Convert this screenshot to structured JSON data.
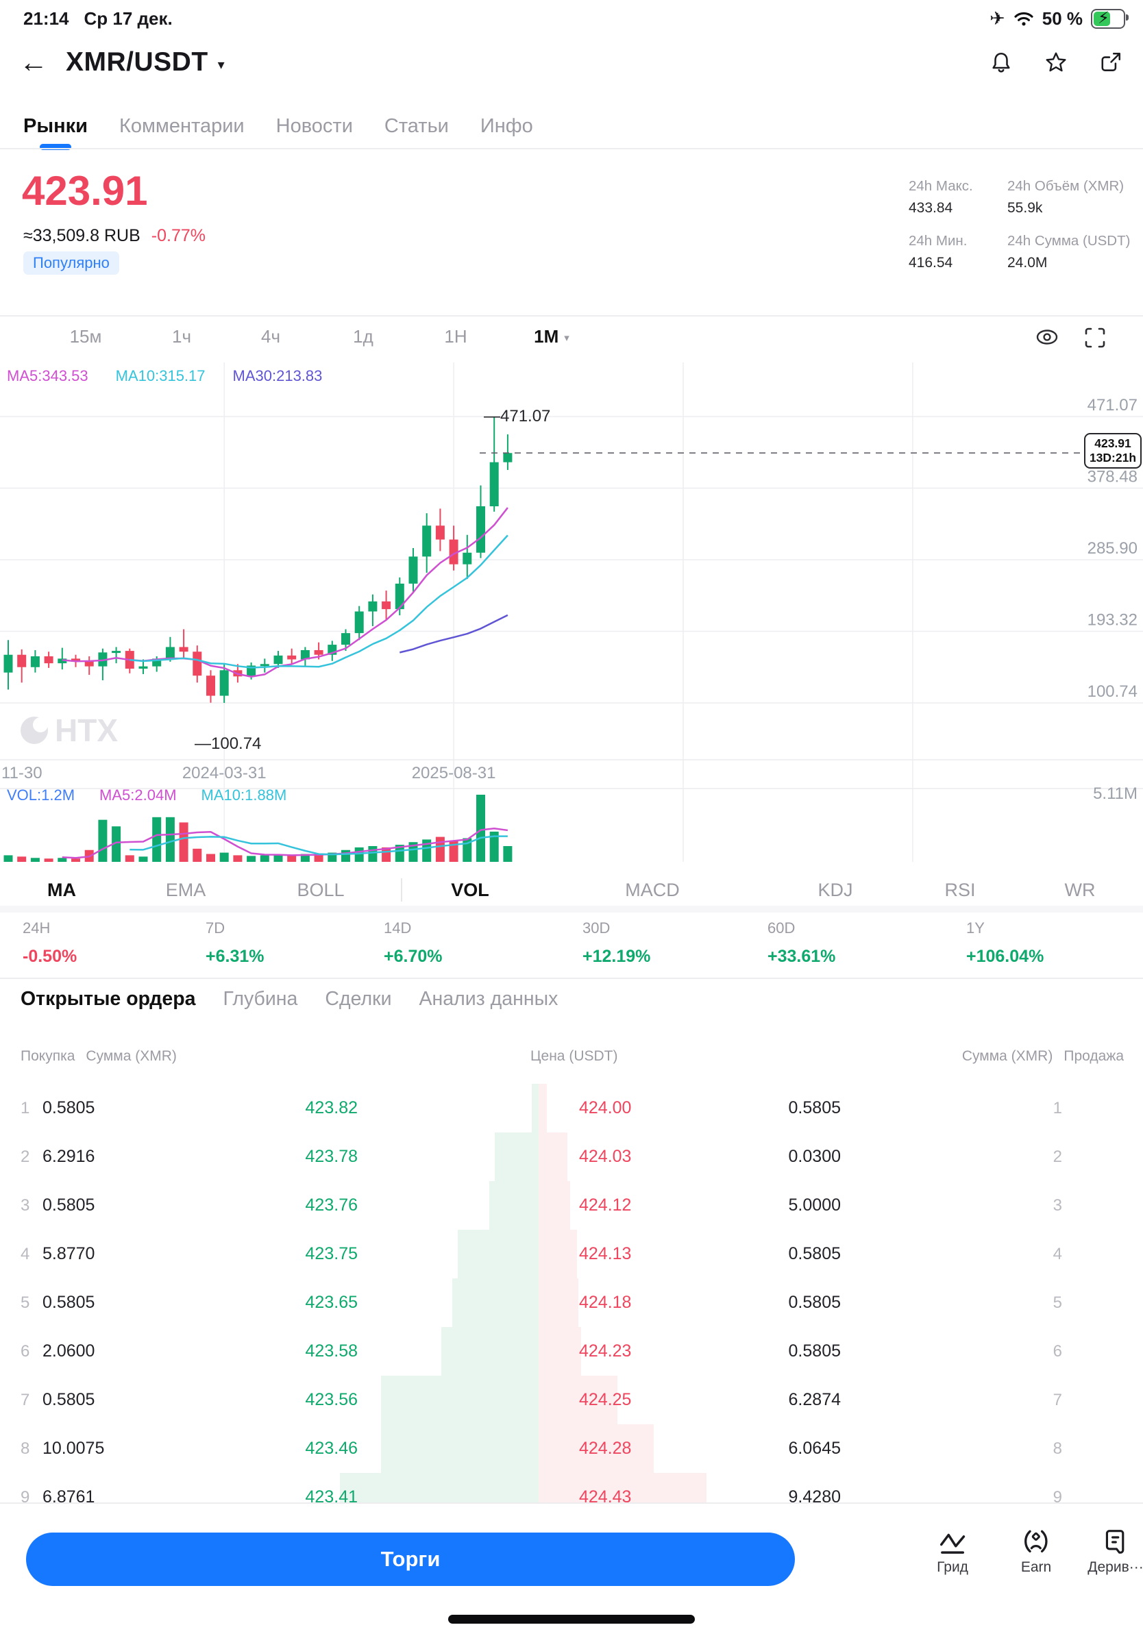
{
  "status_bar": {
    "time": "21:14",
    "date": "Ср 17 дек.",
    "battery": "50 %"
  },
  "icons": {
    "back": "←",
    "caret_down": "▾",
    "airplane": "✈",
    "bolt": "⚡"
  },
  "header": {
    "title": "XMR/USDT"
  },
  "nav_tabs": {
    "items": [
      "Рынки",
      "Комментарии",
      "Новости",
      "Статьи",
      "Инфо"
    ],
    "active": 0
  },
  "price_panel": {
    "price": "423.91",
    "fiat": "≈33,509.8 RUB",
    "change": "-0.77%",
    "badge": "Популярно",
    "stats": [
      {
        "label": "24h Макс.",
        "value": "433.84"
      },
      {
        "label": "24h Объём (XMR)",
        "value": "55.9k"
      },
      {
        "label": "24h Мин.",
        "value": "416.54"
      },
      {
        "label": "24h Сумма (USDT)",
        "value": "24.0M"
      }
    ]
  },
  "timeframes": {
    "items": [
      "15м",
      "1ч",
      "4ч",
      "1д",
      "1Н",
      "1М"
    ],
    "active": 5
  },
  "chart_data": {
    "type": "candlestick",
    "interval": "1M",
    "legend": {
      "ma5": "MA5:343.53",
      "ma10": "MA10:315.17",
      "ma30": "MA30:213.83"
    },
    "vol_legend": {
      "vol": "VOL:1.2M",
      "ma5": "MA5:2.04M",
      "ma10": "MA10:1.88M"
    },
    "y_ticks": [
      "471.07",
      "378.48",
      "285.90",
      "193.32",
      "100.74"
    ],
    "vol_tick": "5.11M",
    "x_labels": [
      {
        "text": "11-30",
        "pos": 0
      },
      {
        "text": "2024-03-31",
        "pos": 16
      },
      {
        "text": "2025-08-31",
        "pos": 33
      }
    ],
    "high_annotation": "—471.07",
    "low_annotation": "—100.74",
    "last_price": "423.91",
    "countdown": "13D:21h",
    "watermark": "HTX",
    "ylim": [
      100.74,
      471.07
    ],
    "candles": [
      [
        140,
        182,
        118,
        163
      ],
      [
        163,
        170,
        127,
        147
      ],
      [
        147,
        169,
        140,
        161
      ],
      [
        161,
        167,
        146,
        152
      ],
      [
        152,
        172,
        144,
        158
      ],
      [
        158,
        163,
        147,
        155
      ],
      [
        155,
        161,
        137,
        148
      ],
      [
        148,
        171,
        130,
        166
      ],
      [
        166,
        173,
        152,
        168
      ],
      [
        168,
        171,
        139,
        145
      ],
      [
        145,
        157,
        138,
        148
      ],
      [
        148,
        161,
        141,
        158
      ],
      [
        158,
        186,
        154,
        173
      ],
      [
        173,
        196,
        159,
        167
      ],
      [
        167,
        175,
        127,
        136
      ],
      [
        136,
        143,
        101,
        110
      ],
      [
        110,
        151,
        100.74,
        143
      ],
      [
        143,
        151,
        127,
        135
      ],
      [
        135,
        153,
        131,
        149
      ],
      [
        149,
        158,
        140,
        151
      ],
      [
        151,
        168,
        146,
        162
      ],
      [
        162,
        171,
        151,
        157
      ],
      [
        157,
        173,
        149,
        169
      ],
      [
        169,
        179,
        157,
        163
      ],
      [
        163,
        181,
        155,
        176
      ],
      [
        176,
        196,
        168,
        191
      ],
      [
        191,
        226,
        182,
        219
      ],
      [
        219,
        241,
        200,
        232
      ],
      [
        232,
        246,
        209,
        222
      ],
      [
        222,
        263,
        214,
        255
      ],
      [
        255,
        301,
        244,
        290
      ],
      [
        290,
        346,
        269,
        330
      ],
      [
        330,
        352,
        297,
        312
      ],
      [
        312,
        330,
        272,
        280
      ],
      [
        280,
        318,
        261,
        295
      ],
      [
        295,
        382,
        288,
        355
      ],
      [
        355,
        471.07,
        348,
        412
      ],
      [
        412,
        448,
        402,
        423.91
      ]
    ],
    "volumes": [
      0.5,
      0.4,
      0.3,
      0.25,
      0.3,
      0.25,
      0.9,
      3.2,
      2.7,
      0.5,
      0.4,
      3.4,
      3.4,
      3.0,
      1.0,
      0.6,
      0.7,
      0.5,
      0.45,
      0.5,
      0.55,
      0.5,
      0.6,
      0.55,
      0.7,
      0.9,
      1.1,
      1.2,
      1.1,
      1.3,
      1.5,
      1.7,
      1.9,
      1.6,
      1.8,
      5.11,
      2.3,
      1.2
    ],
    "vol_max": 5.11
  },
  "indicator_tabs": {
    "items": [
      "MA",
      "EMA",
      "BOLL",
      "VOL",
      "MACD",
      "KDJ",
      "RSI",
      "WR"
    ],
    "active": [
      0,
      3
    ]
  },
  "performance": [
    {
      "label": "24H",
      "value": "-0.50%",
      "dir": "down"
    },
    {
      "label": "7D",
      "value": "+6.31%",
      "dir": "up"
    },
    {
      "label": "14D",
      "value": "+6.70%",
      "dir": "up"
    },
    {
      "label": "30D",
      "value": "+12.19%",
      "dir": "up"
    },
    {
      "label": "60D",
      "value": "+33.61%",
      "dir": "up"
    },
    {
      "label": "1Y",
      "value": "+106.04%",
      "dir": "up"
    }
  ],
  "orderbook": {
    "tabs": [
      "Открытые ордера",
      "Глубина",
      "Сделки",
      "Анализ данных"
    ],
    "active": 0,
    "headers": {
      "buy": "Покупка",
      "amount_left": "Сумма (XMR)",
      "price": "Цена (USDT)",
      "amount_right": "Сумма (XMR)",
      "sell": "Продажа"
    },
    "rows": [
      {
        "i": "1",
        "bid_amount": "0.5805",
        "bid_price": "423.82",
        "ask_price": "424.00",
        "ask_amount": "0.5805",
        "bid_depth": 10,
        "ask_depth": 12
      },
      {
        "i": "2",
        "bid_amount": "6.2916",
        "bid_price": "423.78",
        "ask_price": "424.03",
        "ask_amount": "0.0300",
        "bid_depth": 64,
        "ask_depth": 42
      },
      {
        "i": "3",
        "bid_amount": "0.5805",
        "bid_price": "423.76",
        "ask_price": "424.12",
        "ask_amount": "5.0000",
        "bid_depth": 72,
        "ask_depth": 46
      },
      {
        "i": "4",
        "bid_amount": "5.8770",
        "bid_price": "423.75",
        "ask_price": "424.13",
        "ask_amount": "0.5805",
        "bid_depth": 118,
        "ask_depth": 56
      },
      {
        "i": "5",
        "bid_amount": "0.5805",
        "bid_price": "423.65",
        "ask_price": "424.18",
        "ask_amount": "0.5805",
        "bid_depth": 126,
        "ask_depth": 58
      },
      {
        "i": "6",
        "bid_amount": "2.0600",
        "bid_price": "423.58",
        "ask_price": "424.23",
        "ask_amount": "0.5805",
        "bid_depth": 142,
        "ask_depth": 62
      },
      {
        "i": "7",
        "bid_amount": "0.5805",
        "bid_price": "423.56",
        "ask_price": "424.25",
        "ask_amount": "6.2874",
        "bid_depth": 230,
        "ask_depth": 115
      },
      {
        "i": "8",
        "bid_amount": "10.0075",
        "bid_price": "423.46",
        "ask_price": "424.28",
        "ask_amount": "6.0645",
        "bid_depth": 230,
        "ask_depth": 168
      },
      {
        "i": "9",
        "bid_amount": "6.8761",
        "bid_price": "423.41",
        "ask_price": "424.43",
        "ask_amount": "9.4280",
        "bid_depth": 290,
        "ask_depth": 245
      }
    ]
  },
  "bottom_bar": {
    "trade": "Торги",
    "actions": [
      {
        "label": "Грид",
        "icon": "grid-trading-icon"
      },
      {
        "label": "Earn",
        "icon": "earn-icon"
      },
      {
        "label": "Дерив···",
        "icon": "derivatives-icon"
      }
    ]
  },
  "colors": {
    "accent": "#1677ff",
    "up": "#0fa96d",
    "down": "#ee465f",
    "ma5": "#cf4fd1",
    "ma10": "#35c3dc",
    "ma30": "#5f55d4",
    "badge_bg": "#e8f1fe",
    "badge_text": "#2f80f5"
  }
}
